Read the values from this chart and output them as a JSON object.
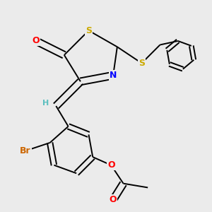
{
  "background_color": "#ebebeb",
  "atom_colors": {
    "C": "#000000",
    "H": "#5bbfbf",
    "N": "#0000ff",
    "O": "#ff0000",
    "S": "#ccaa00",
    "Br": "#cc6600"
  },
  "bond_color": "#000000",
  "bond_width": 1.4,
  "font_size": 9,
  "figsize": [
    3.0,
    3.0
  ],
  "dpi": 100
}
